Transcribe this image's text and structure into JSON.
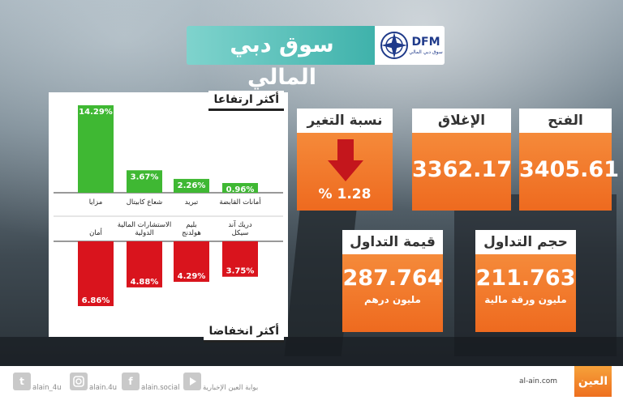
{
  "header": {
    "title": "سوق دبي المالي",
    "logo_text": "DFM",
    "logo_subtext": "سوق دبي المالي"
  },
  "panel": {
    "gainers_label": "أكثر ارتفاعا",
    "losers_label": "أكثر انخفاضا"
  },
  "chart_data": {
    "type": "bar",
    "gainers": {
      "categories": [
        "مزايا",
        "شعاع كابيتال",
        "تبريد",
        "أمانات القابضة"
      ],
      "values": [
        14.29,
        3.67,
        2.26,
        0.96
      ],
      "value_labels": [
        "14.29%",
        "3.67%",
        "2.26%",
        "0.96%"
      ],
      "color": "#3fb833"
    },
    "losers": {
      "categories": [
        "أمان",
        "الاستشارات المالية الدولية",
        "بليم هولدنج",
        "دريك آند سيكل"
      ],
      "values": [
        6.86,
        4.88,
        4.29,
        3.75
      ],
      "value_labels": [
        "6.86%",
        "4.88%",
        "4.29%",
        "3.75%"
      ],
      "color": "#d9141d"
    }
  },
  "stats": {
    "open": {
      "label": "الفتح",
      "value": "3405.61"
    },
    "close": {
      "label": "الإغلاق",
      "value": "3362.17"
    },
    "change": {
      "label": "نسبة التغير",
      "value": "% 1.28",
      "direction": "down"
    },
    "volume": {
      "label": "حجم التداول",
      "value": "211.763",
      "unit": "مليون ورقة مالية"
    },
    "trade_value": {
      "label": "قيمة التداول",
      "value": "287.764",
      "unit": "مليون درهم"
    }
  },
  "footer": {
    "twitter": "alain_4u",
    "instagram": "alain.4u",
    "facebook": "alain.social",
    "youtube": "بوابة العين الإخبارية",
    "site": "al-ain.com",
    "brand": "العين"
  },
  "colors": {
    "accent_orange": "#ef6f22",
    "teal": "#3fb2ab",
    "gain_green": "#3fb833",
    "loss_red": "#d9141d",
    "arrow_red": "#c4161c"
  }
}
